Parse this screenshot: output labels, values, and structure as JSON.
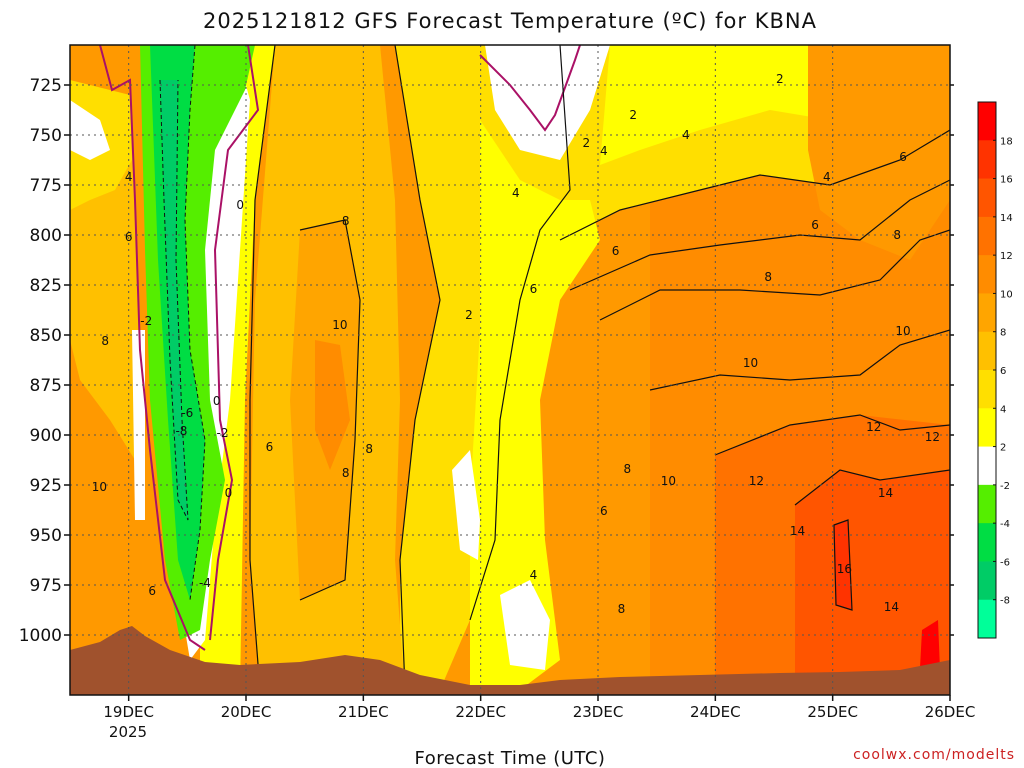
{
  "chart_data": {
    "type": "contour",
    "title": "2025121812 GFS Forecast Temperature (ºC) for KBNA",
    "xlabel": "Forecast Time (UTC)",
    "credit": "coolwx.com/modelts",
    "x_ticks": [
      "19DEC",
      "20DEC",
      "21DEC",
      "22DEC",
      "23DEC",
      "24DEC",
      "25DEC",
      "26DEC"
    ],
    "x_subtick": "2025",
    "xlim_days": [
      18.5,
      26.0
    ],
    "y_ticks": [
      725,
      750,
      775,
      800,
      825,
      850,
      875,
      900,
      925,
      950,
      975,
      1000
    ],
    "ylim_hpa": [
      1030,
      705
    ],
    "legend_levels": [
      18,
      16,
      14,
      12,
      10,
      8,
      6,
      4,
      2,
      -2,
      -4,
      -6,
      -8
    ],
    "legend_colors": [
      "#ff0000",
      "#ff3300",
      "#ff5500",
      "#ff7200",
      "#ff8c00",
      "#ffa500",
      "#ffc000",
      "#ffdf00",
      "#ffff00",
      "#ffffff",
      "#55ee00",
      "#00dd44",
      "#00cc66",
      "#00ff99"
    ],
    "contour_labels": [
      {
        "text": "4",
        "day": 19.0,
        "p": 771
      },
      {
        "text": "6",
        "day": 19.0,
        "p": 801
      },
      {
        "text": "8",
        "day": 18.8,
        "p": 853
      },
      {
        "text": "-2",
        "day": 19.15,
        "p": 843
      },
      {
        "text": "10",
        "day": 18.75,
        "p": 926
      },
      {
        "text": "6",
        "day": 19.2,
        "p": 978
      },
      {
        "text": "0",
        "day": 19.95,
        "p": 785
      },
      {
        "text": "0",
        "day": 19.75,
        "p": 883
      },
      {
        "text": "-6",
        "day": 19.5,
        "p": 889
      },
      {
        "text": "-8",
        "day": 19.45,
        "p": 898
      },
      {
        "text": "-2",
        "day": 19.8,
        "p": 899
      },
      {
        "text": "0",
        "day": 19.85,
        "p": 929
      },
      {
        "text": "-4",
        "day": 19.65,
        "p": 974
      },
      {
        "text": "6",
        "day": 20.2,
        "p": 906
      },
      {
        "text": "8",
        "day": 20.85,
        "p": 793
      },
      {
        "text": "10",
        "day": 20.8,
        "p": 845
      },
      {
        "text": "8",
        "day": 21.05,
        "p": 907
      },
      {
        "text": "8",
        "day": 20.85,
        "p": 919
      },
      {
        "text": "2",
        "day": 21.9,
        "p": 840
      },
      {
        "text": "4",
        "day": 22.3,
        "p": 779
      },
      {
        "text": "6",
        "day": 22.45,
        "p": 827
      },
      {
        "text": "4",
        "day": 22.45,
        "p": 970
      },
      {
        "text": "2",
        "day": 22.9,
        "p": 754
      },
      {
        "text": "4",
        "day": 23.05,
        "p": 758
      },
      {
        "text": "2",
        "day": 23.3,
        "p": 740
      },
      {
        "text": "4",
        "day": 23.75,
        "p": 750
      },
      {
        "text": "2",
        "day": 24.55,
        "p": 722
      },
      {
        "text": "4",
        "day": 24.95,
        "p": 771
      },
      {
        "text": "6",
        "day": 25.6,
        "p": 761
      },
      {
        "text": "6",
        "day": 23.15,
        "p": 808
      },
      {
        "text": "6",
        "day": 24.85,
        "p": 795
      },
      {
        "text": "8",
        "day": 25.55,
        "p": 800
      },
      {
        "text": "8",
        "day": 24.45,
        "p": 821
      },
      {
        "text": "10",
        "day": 25.6,
        "p": 848
      },
      {
        "text": "10",
        "day": 24.3,
        "p": 864
      },
      {
        "text": "12",
        "day": 25.35,
        "p": 896
      },
      {
        "text": "12",
        "day": 25.85,
        "p": 901
      },
      {
        "text": "8",
        "day": 23.25,
        "p": 917
      },
      {
        "text": "10",
        "day": 23.6,
        "p": 923
      },
      {
        "text": "12",
        "day": 24.35,
        "p": 923
      },
      {
        "text": "14",
        "day": 25.45,
        "p": 929
      },
      {
        "text": "6",
        "day": 23.05,
        "p": 938
      },
      {
        "text": "14",
        "day": 24.7,
        "p": 948
      },
      {
        "text": "16",
        "day": 25.1,
        "p": 967
      },
      {
        "text": "14",
        "day": 25.5,
        "p": 986
      },
      {
        "text": "8",
        "day": 23.2,
        "p": 987
      }
    ]
  }
}
